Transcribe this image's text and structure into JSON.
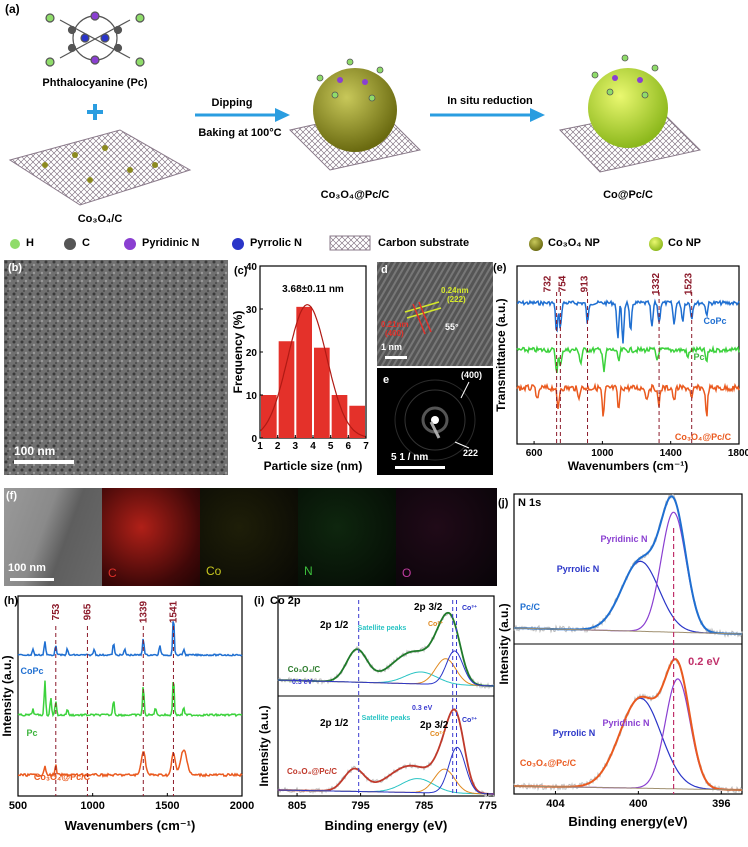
{
  "panel_a": {
    "label": "(a)",
    "pc_label": "Phthalocyanine (Pc)",
    "step1_top": "Dipping",
    "step1_bottom": "Baking at 100°C",
    "step2": "In situ reduction",
    "sub1": "Co₃O₄/C",
    "sub2": "Co₃O₄@Pc/C",
    "sub3": "Co@Pc/C",
    "legend": [
      "H",
      "C",
      "Pyridinic N",
      "Pyrrolic N",
      "Carbon substrate",
      "Co₃O₄ NP",
      "Co NP"
    ],
    "legend_colors": [
      "#8fdc6a",
      "#555555",
      "#8a3fd1",
      "#2a35c8",
      "#9a8a9a",
      "#8c8a20",
      "#b8e234"
    ]
  },
  "panel_b": {
    "label": "(b)",
    "scale": "100 nm"
  },
  "panel_c": {
    "label": "(c)",
    "annotation": "3.68±0.11 nm"
  },
  "panel_d": {
    "label": "d",
    "d1": "0.24nm",
    "d1b": "(222)",
    "d2": "0.21nm",
    "d2b": "(400)",
    "angle": "55°",
    "scale": "1 nm"
  },
  "panel_e_inset": {
    "label": "e",
    "ring1": "(400)",
    "ring2": "222",
    "scale": "5  1 / nm"
  },
  "panel_f": {
    "label": "(f)",
    "scale": "100 nm",
    "maps": [
      "C",
      "Co",
      "N",
      "O"
    ],
    "map_colors": [
      "#e0302a",
      "#c8c820",
      "#3cbf3c",
      "#c03ca0"
    ]
  },
  "chart_data": [
    {
      "type": "bar",
      "panel": "(c)",
      "categories": [
        "1.5",
        "2.5",
        "3.5",
        "4.5",
        "5.5",
        "6.5"
      ],
      "values": [
        10,
        22.5,
        30.5,
        21,
        10,
        7.5
      ],
      "xlabel": "Particle size (nm)",
      "ylabel": "Frequency (%)",
      "xlim": [
        1,
        7
      ],
      "ylim": [
        0,
        40
      ],
      "xticks": [
        1,
        2,
        3,
        4,
        5,
        6,
        7
      ],
      "yticks": [
        0,
        10,
        20,
        30,
        40
      ],
      "color": "#e4312a"
    },
    {
      "type": "line",
      "panel": "(e)",
      "xlabel": "Wavenumbers (cm⁻¹)",
      "ylabel": "Transmittance (a.u.)",
      "xlim": [
        500,
        1800
      ],
      "xticks": [
        600,
        1000,
        1400,
        1800
      ],
      "markers": [
        "732",
        "754",
        "913",
        "1332",
        "1523"
      ],
      "marker_positions": [
        732,
        754,
        913,
        1332,
        1523
      ],
      "series": [
        {
          "name": "CoPc",
          "color": "#1f6fd1"
        },
        {
          "name": "Pc",
          "color": "#3cd23c"
        },
        {
          "name": "Co₃O₄@Pc/C",
          "color": "#ea5a1f"
        }
      ]
    },
    {
      "type": "line",
      "panel": "(h)",
      "xlabel": "Wavenumbers (cm⁻¹)",
      "ylabel": "Intensity (a.u.)",
      "xlim": [
        500,
        2000
      ],
      "xticks": [
        500,
        1000,
        1500,
        2000
      ],
      "markers": [
        "753",
        "965",
        "1339",
        "1541"
      ],
      "marker_positions": [
        753,
        965,
        1339,
        1541
      ],
      "series": [
        {
          "name": "CoPc",
          "color": "#1f6fd1"
        },
        {
          "name": "Pc",
          "color": "#3cd23c"
        },
        {
          "name": "Co₃O₄@Pc/C",
          "color": "#ea5a1f"
        }
      ]
    },
    {
      "type": "line",
      "panel": "(i)",
      "title": "Co 2p",
      "xlabel": "Binding energy (eV)",
      "ylabel": "Intensity (a.u.)",
      "xlim": [
        808,
        774
      ],
      "xticks": [
        805,
        795,
        785,
        775
      ],
      "annotations": [
        "2p 1/2",
        "2p 3/2",
        "Satellite peaks",
        "Co²⁺",
        "Co³⁺",
        "0.3 eV"
      ],
      "series": [
        {
          "name": "Co₃O₄/C",
          "color": "#2a7a2a"
        },
        {
          "name": "Co₃O₄@Pc/C",
          "color": "#c0392b"
        }
      ]
    },
    {
      "type": "line",
      "panel": "(j)",
      "title": "N 1s",
      "xlabel": "Binding energy(eV)",
      "ylabel": "Intensity (a.u.)",
      "xlim": [
        406,
        395
      ],
      "xticks": [
        404,
        400,
        396
      ],
      "annotations": [
        "Pyridinic N",
        "Pyrrolic  N",
        "0.2 eV"
      ],
      "series": [
        {
          "name": "Pc/C",
          "color": "#1f6fd1"
        },
        {
          "name": "Co₃O₄@Pc/C",
          "color": "#ea5a1f"
        }
      ]
    }
  ]
}
